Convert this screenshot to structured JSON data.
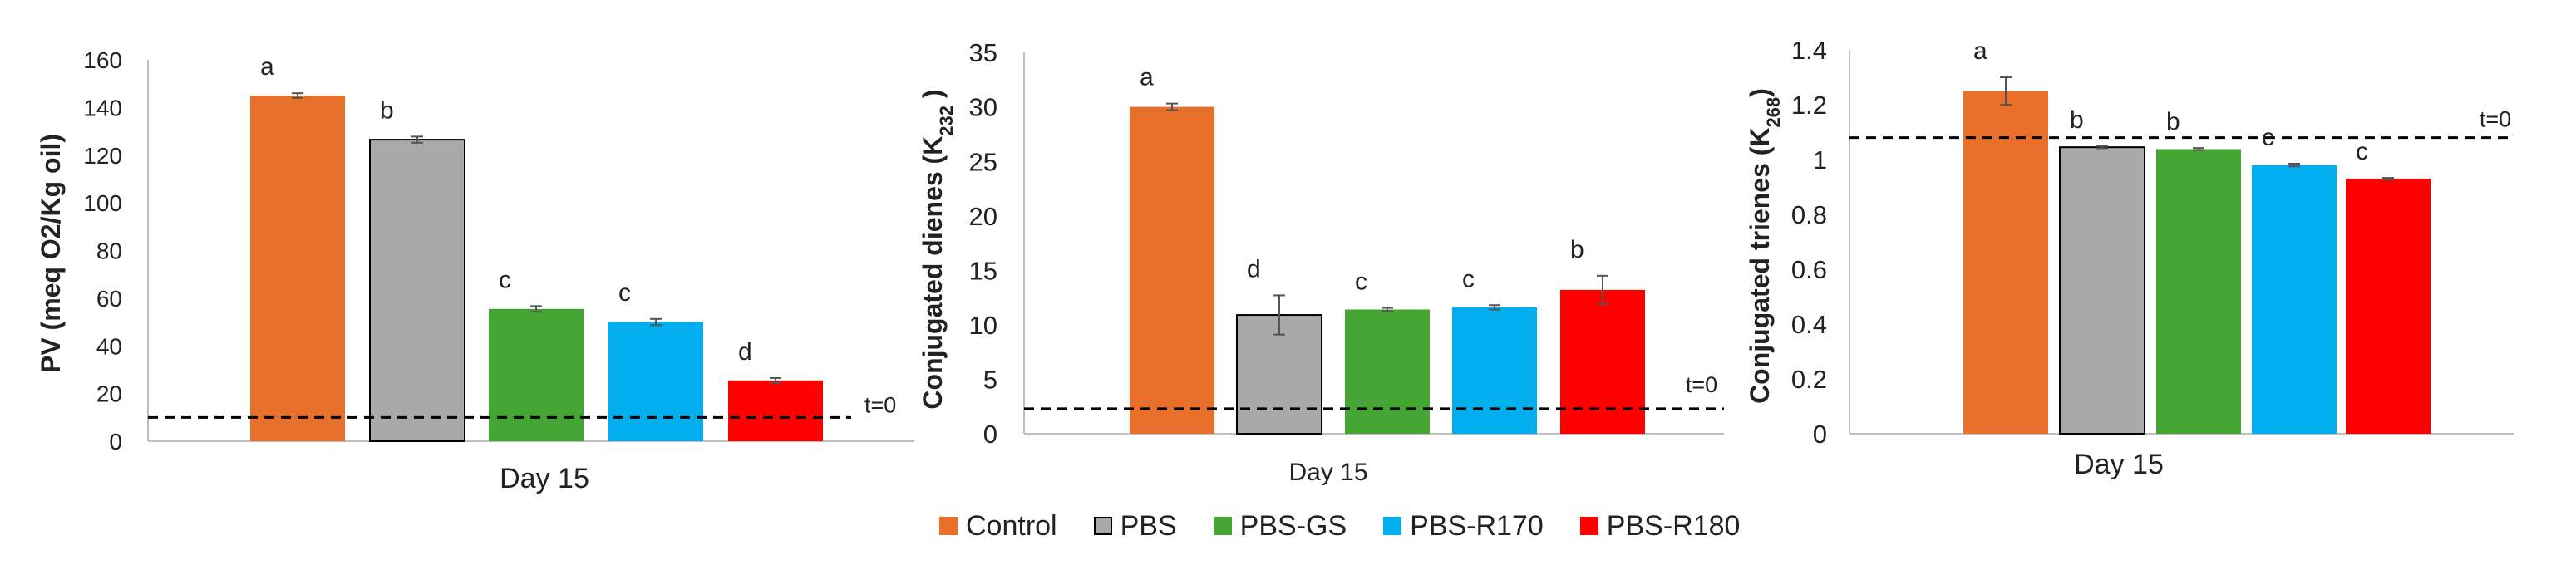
{
  "colors": {
    "Control": "#E8702A",
    "PBS": "#A9A9A9",
    "PBS-GS": "#44A533",
    "PBS-R170": "#00AEEF",
    "PBS-R180": "#FF0000"
  },
  "legend": {
    "items": [
      "Control",
      "PBS",
      "PBS-GS",
      "PBS-R170",
      "PBS-R180"
    ]
  },
  "chart_data": [
    {
      "type": "bar",
      "title": "",
      "xlabel": "Day 15",
      "ylabel": "PV (meq O2/Kg oil)",
      "ylim": [
        0,
        160
      ],
      "yticks": [
        "0",
        "20",
        "40",
        "60",
        "80",
        "100",
        "120",
        "140",
        "160"
      ],
      "categories": [
        "Control",
        "PBS",
        "PBS-GS",
        "PBS-R170",
        "PBS-R180"
      ],
      "values": [
        145,
        126.5,
        55.5,
        50,
        25.5
      ],
      "errors": [
        1,
        1.3,
        1.2,
        1.3,
        1
      ],
      "significance_letters": [
        "a",
        "b",
        "c",
        "c",
        "d"
      ],
      "reference_line": {
        "value": 10,
        "label": "t=0"
      }
    },
    {
      "type": "bar",
      "title": "",
      "xlabel": "Day 15",
      "ylabel_main": "Conjugated dienes (K",
      "ylabel_sub": "232",
      "ylabel_end": " )",
      "ylim": [
        0,
        35
      ],
      "yticks": [
        "0",
        "5",
        "10",
        "15",
        "20",
        "25",
        "30",
        "35"
      ],
      "categories": [
        "Control",
        "PBS",
        "PBS-GS",
        "PBS-R170",
        "PBS-R180"
      ],
      "values": [
        30,
        10.9,
        11.4,
        11.6,
        13.2
      ],
      "errors": [
        0.3,
        1.8,
        0.15,
        0.2,
        1.3
      ],
      "significance_letters": [
        "a",
        "d",
        "c",
        "c",
        "b"
      ],
      "reference_line": {
        "value": 2.3,
        "label": "t=0"
      }
    },
    {
      "type": "bar",
      "title": "",
      "xlabel": "Day 15",
      "ylabel_main": "Conjugated trienes (K",
      "ylabel_sub": "268",
      "ylabel_end": ")",
      "ylim": [
        0,
        1.4
      ],
      "yticks": [
        "0",
        "0.2",
        "0.4",
        "0.6",
        "0.8",
        "1",
        "1.2",
        "1.4"
      ],
      "categories": [
        "Control",
        "PBS",
        "PBS-GS",
        "PBS-R170",
        "PBS-R180"
      ],
      "values": [
        1.25,
        1.045,
        1.038,
        0.98,
        0.93
      ],
      "errors": [
        0.05,
        0.004,
        0.004,
        0.005,
        0.003
      ],
      "significance_letters": [
        "a",
        "b",
        "b",
        "c",
        "c"
      ],
      "reference_line": {
        "value": 1.08,
        "label": "t=0"
      }
    }
  ]
}
